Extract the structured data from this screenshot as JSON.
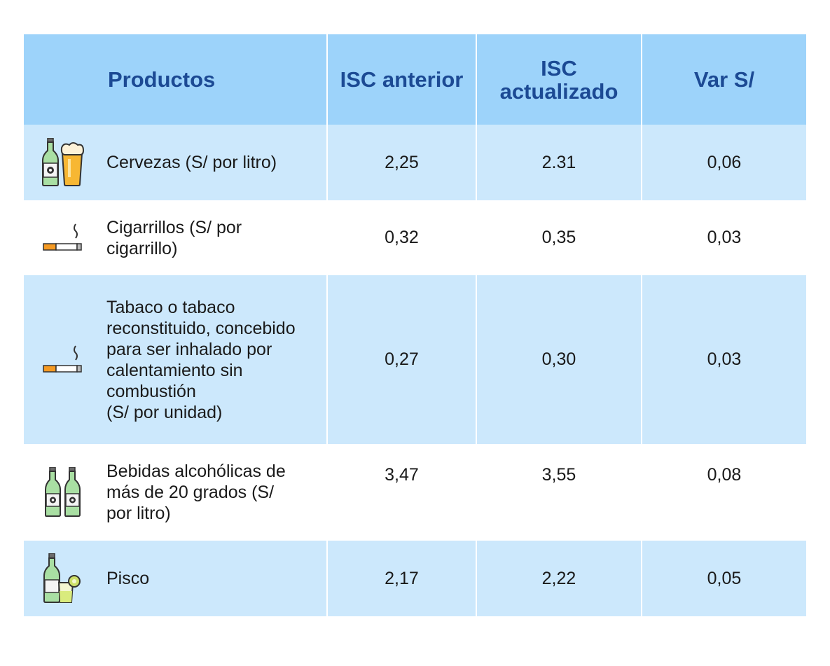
{
  "header": {
    "productos": "Productos",
    "isc_anterior": "ISC anterior",
    "isc_actualizado_1": "ISC",
    "isc_actualizado_2": "actualizado",
    "var": "Var S/"
  },
  "rows": [
    {
      "icon": "beer-icon",
      "label_lines": [
        "Cervezas (S/ por litro)"
      ],
      "anterior": "2,25",
      "actualizado": "2.31",
      "var": "0,06"
    },
    {
      "icon": "cigarette-icon",
      "label_lines": [
        "Cigarrillos (S/ por",
        "cigarrillo)"
      ],
      "anterior": "0,32",
      "actualizado": "0,35",
      "var": "0,03"
    },
    {
      "icon": "cigarette-icon",
      "label_lines": [
        "Tabaco o tabaco",
        "reconstituido, concebido",
        "para ser inhalado por",
        "calentamiento sin",
        "combustión",
        "(S/ por unidad)"
      ],
      "anterior": "0,27",
      "actualizado": "0,30",
      "var": "0,03"
    },
    {
      "icon": "liquor-bottles-icon",
      "label_lines": [
        "Bebidas alcohólicas de",
        "más de 20 grados (S/",
        "por litro)"
      ],
      "anterior": "3,47",
      "actualizado": "3,55",
      "var": "0,08"
    },
    {
      "icon": "pisco-icon",
      "label_lines": [
        "Pisco"
      ],
      "anterior": "2,17",
      "actualizado": "2,22",
      "var": "0,05"
    }
  ],
  "colors": {
    "header_bg": "#9dd3fa",
    "header_text": "#1c4a94",
    "row_blue": "#cce8fc",
    "row_white": "#ffffff"
  }
}
